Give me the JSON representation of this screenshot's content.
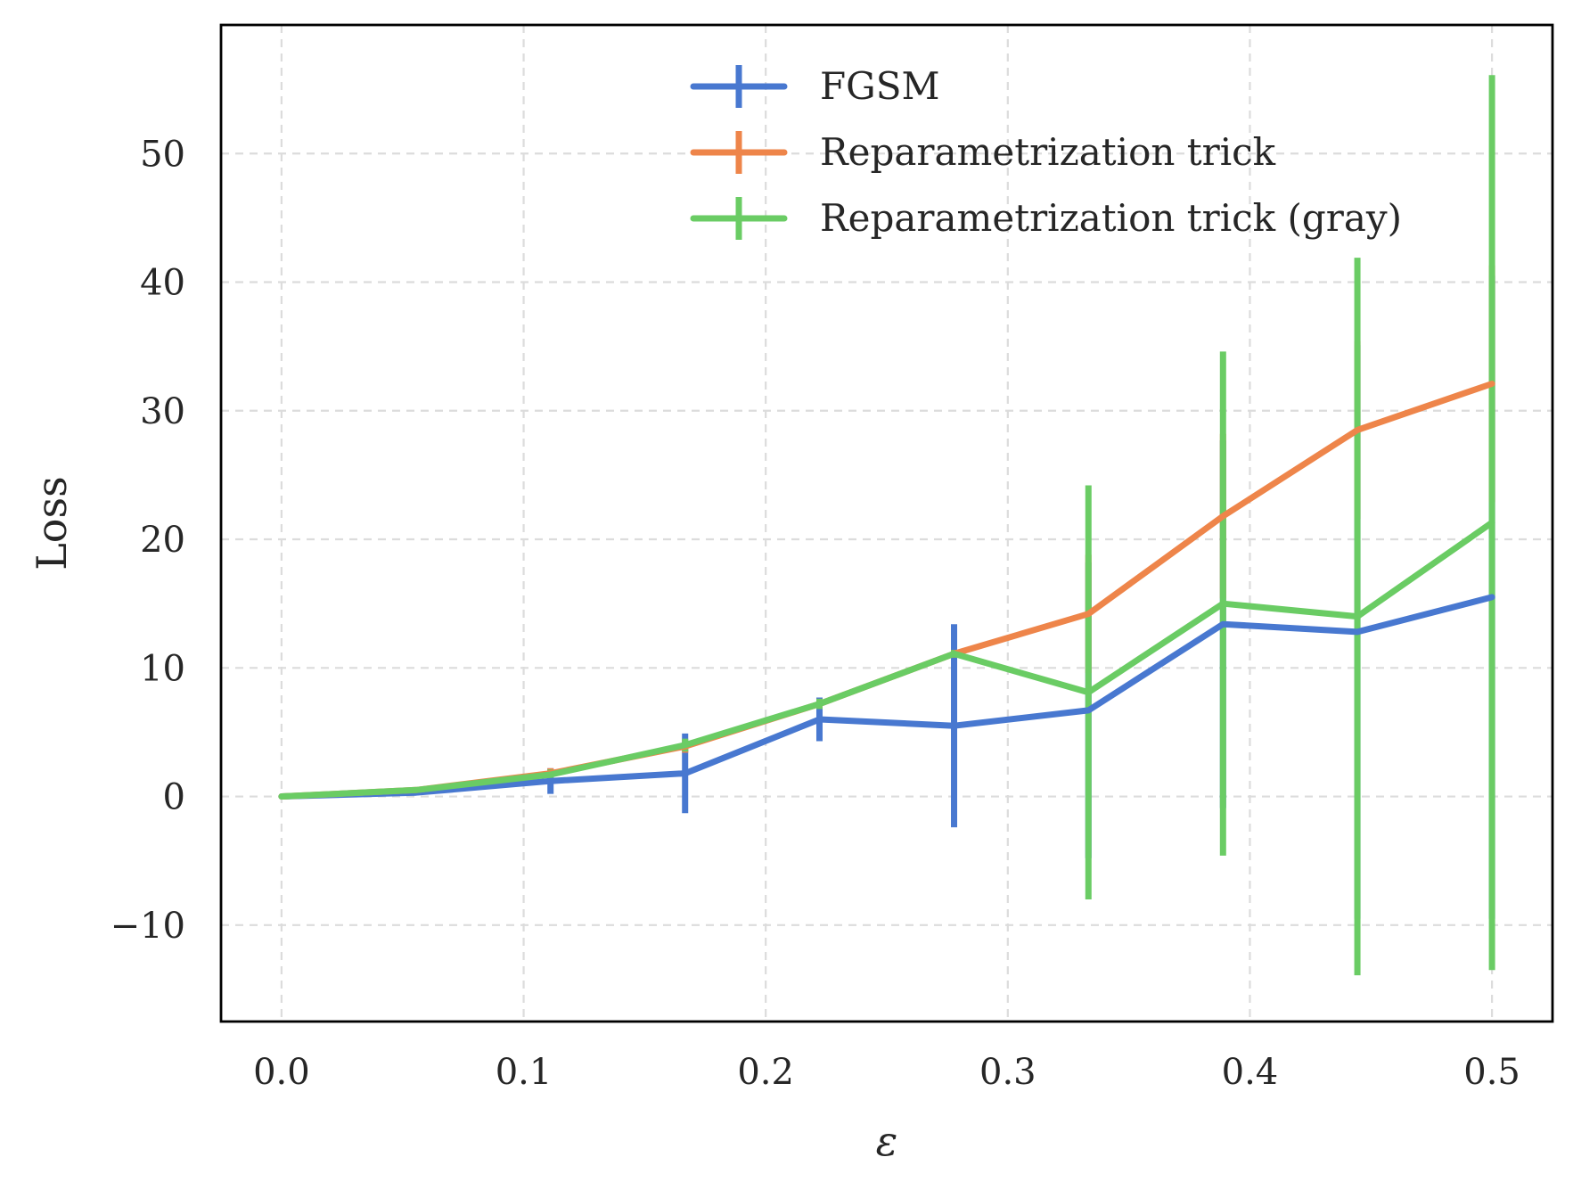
{
  "chart_data": {
    "type": "line",
    "xlabel": "ε",
    "ylabel": "Loss",
    "xlim": [
      -0.025,
      0.525
    ],
    "ylim": [
      -17.5,
      60
    ],
    "grid": true,
    "legend_position": "top-right",
    "x_ticks": [
      {
        "value": 0.0,
        "label": "0.0"
      },
      {
        "value": 0.1,
        "label": "0.1"
      },
      {
        "value": 0.2,
        "label": "0.2"
      },
      {
        "value": 0.3,
        "label": "0.3"
      },
      {
        "value": 0.4,
        "label": "0.4"
      },
      {
        "value": 0.5,
        "label": "0.5"
      }
    ],
    "y_ticks": [
      {
        "value": -10,
        "label": "−10"
      },
      {
        "value": 0,
        "label": "0"
      },
      {
        "value": 10,
        "label": "10"
      },
      {
        "value": 20,
        "label": "20"
      },
      {
        "value": 30,
        "label": "30"
      },
      {
        "value": 40,
        "label": "40"
      },
      {
        "value": 50,
        "label": "50"
      }
    ],
    "x": [
      0.0,
      0.0556,
      0.1111,
      0.1667,
      0.2222,
      0.2778,
      0.3333,
      0.3889,
      0.4444,
      0.5
    ],
    "series": [
      {
        "name": "FGSM",
        "color": "#4878d0",
        "values": [
          0.0,
          0.3,
          1.2,
          1.8,
          6.0,
          5.5,
          6.7,
          13.4,
          12.8,
          15.5
        ],
        "errors": [
          0.0,
          0.2,
          1.0,
          3.1,
          1.7,
          7.9,
          11.5,
          14.3,
          22.3,
          25.0
        ]
      },
      {
        "name": "Reparametrization trick",
        "color": "#ee854a",
        "values": [
          0.0,
          0.5,
          1.8,
          3.9,
          7.2,
          11.1,
          14.2,
          21.8,
          28.5,
          32.1
        ],
        "errors": [
          0.0,
          0.2,
          0.4,
          0.5,
          0.4,
          0.3,
          4.6,
          6.4,
          6.9,
          9.2
        ]
      },
      {
        "name": "Reparametrization trick (gray)",
        "color": "#6acc64",
        "values": [
          0.0,
          0.5,
          1.7,
          4.0,
          7.2,
          11.1,
          8.1,
          15.0,
          14.0,
          21.3
        ],
        "errors": [
          0.0,
          0.2,
          0.4,
          0.5,
          0.4,
          0.3,
          16.1,
          19.6,
          27.9,
          34.8
        ]
      }
    ]
  }
}
